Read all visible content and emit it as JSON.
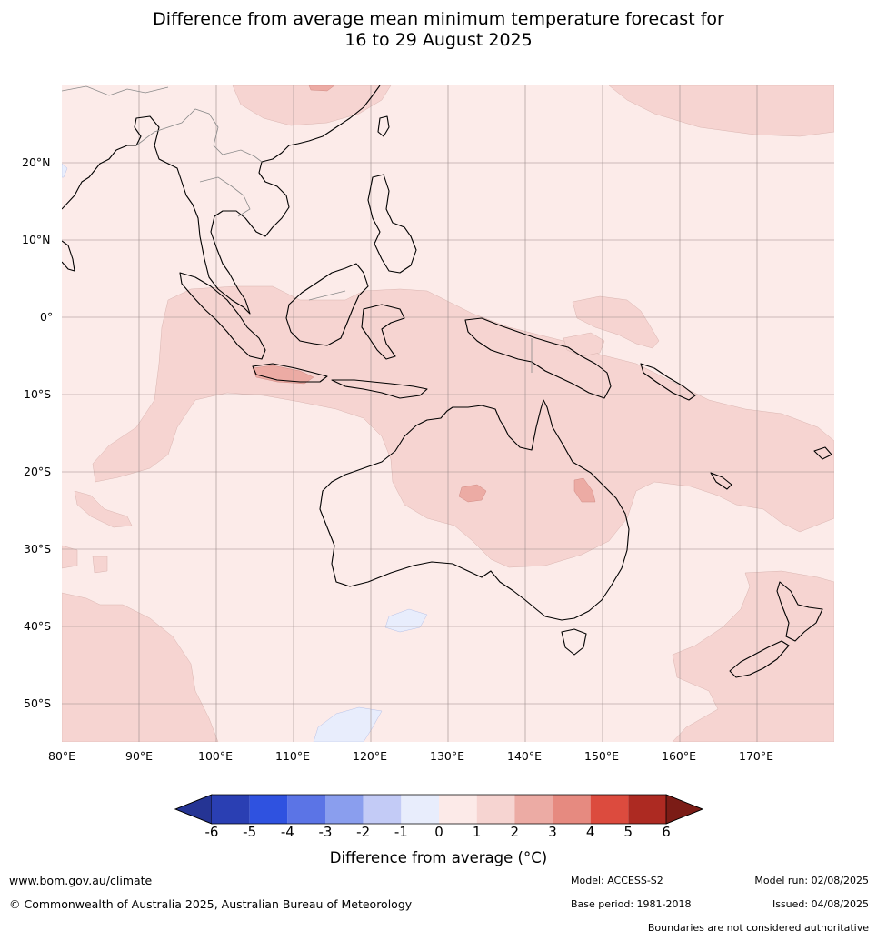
{
  "title": {
    "line1": "Difference from average mean minimum temperature forecast for",
    "line2": "16 to 29 August 2025"
  },
  "map": {
    "region": "Australia, Maritime Continent, Western Pacific, Indian Ocean",
    "lon_range": [
      80,
      180
    ],
    "lat_range": [
      -55,
      30
    ],
    "lat_labels": [
      "20°N",
      "10°N",
      "0°",
      "10°S",
      "20°S",
      "30°S",
      "40°S",
      "50°S"
    ],
    "lon_labels": [
      "80°E",
      "90°E",
      "100°E",
      "110°E",
      "120°E",
      "130°E",
      "140°E",
      "150°E",
      "160°E",
      "170°E"
    ],
    "background_category": "0 to 1",
    "shaded_anomalies": [
      {
        "name": "Java and southern Indonesia",
        "category": "2 to 3"
      },
      {
        "name": "central Australia",
        "category": "2 to 3"
      },
      {
        "name": "inland Queensland",
        "category": "2 to 3"
      },
      {
        "name": "northern Australia and the Maritime Continent",
        "category": "1 to 2"
      },
      {
        "name": "south of Western Australia",
        "category": "-1 to 0"
      },
      {
        "name": "Southern Ocean south of Australia",
        "category": "-1 to 0"
      }
    ]
  },
  "colorbar": {
    "ticks": [
      "-6",
      "-5",
      "-4",
      "-3",
      "-2",
      "-1",
      "0",
      "1",
      "2",
      "3",
      "4",
      "5",
      "6"
    ],
    "colors": [
      "#253494",
      "#2a3fb3",
      "#2f52e0",
      "#5b74e6",
      "#8a9eee",
      "#c3cbf6",
      "#e8edfc",
      "#fceae8",
      "#f6d4d1",
      "#ecaba4",
      "#e68a80",
      "#dc4b3e",
      "#ad2a22",
      "#7b1c16"
    ],
    "label": "Difference from average (°C)"
  },
  "footer": {
    "website": "www.bom.gov.au/climate",
    "copyright": "© Commonwealth of Australia 2025, Australian Bureau of Meteorology",
    "model": "Model: ACCESS-S2",
    "base_period": "Base period: 1981-2018",
    "model_run": "Model run: 02/08/2025",
    "issued": "Issued: 04/08/2025",
    "disclaimer": "Boundaries are not considered authoritative"
  }
}
